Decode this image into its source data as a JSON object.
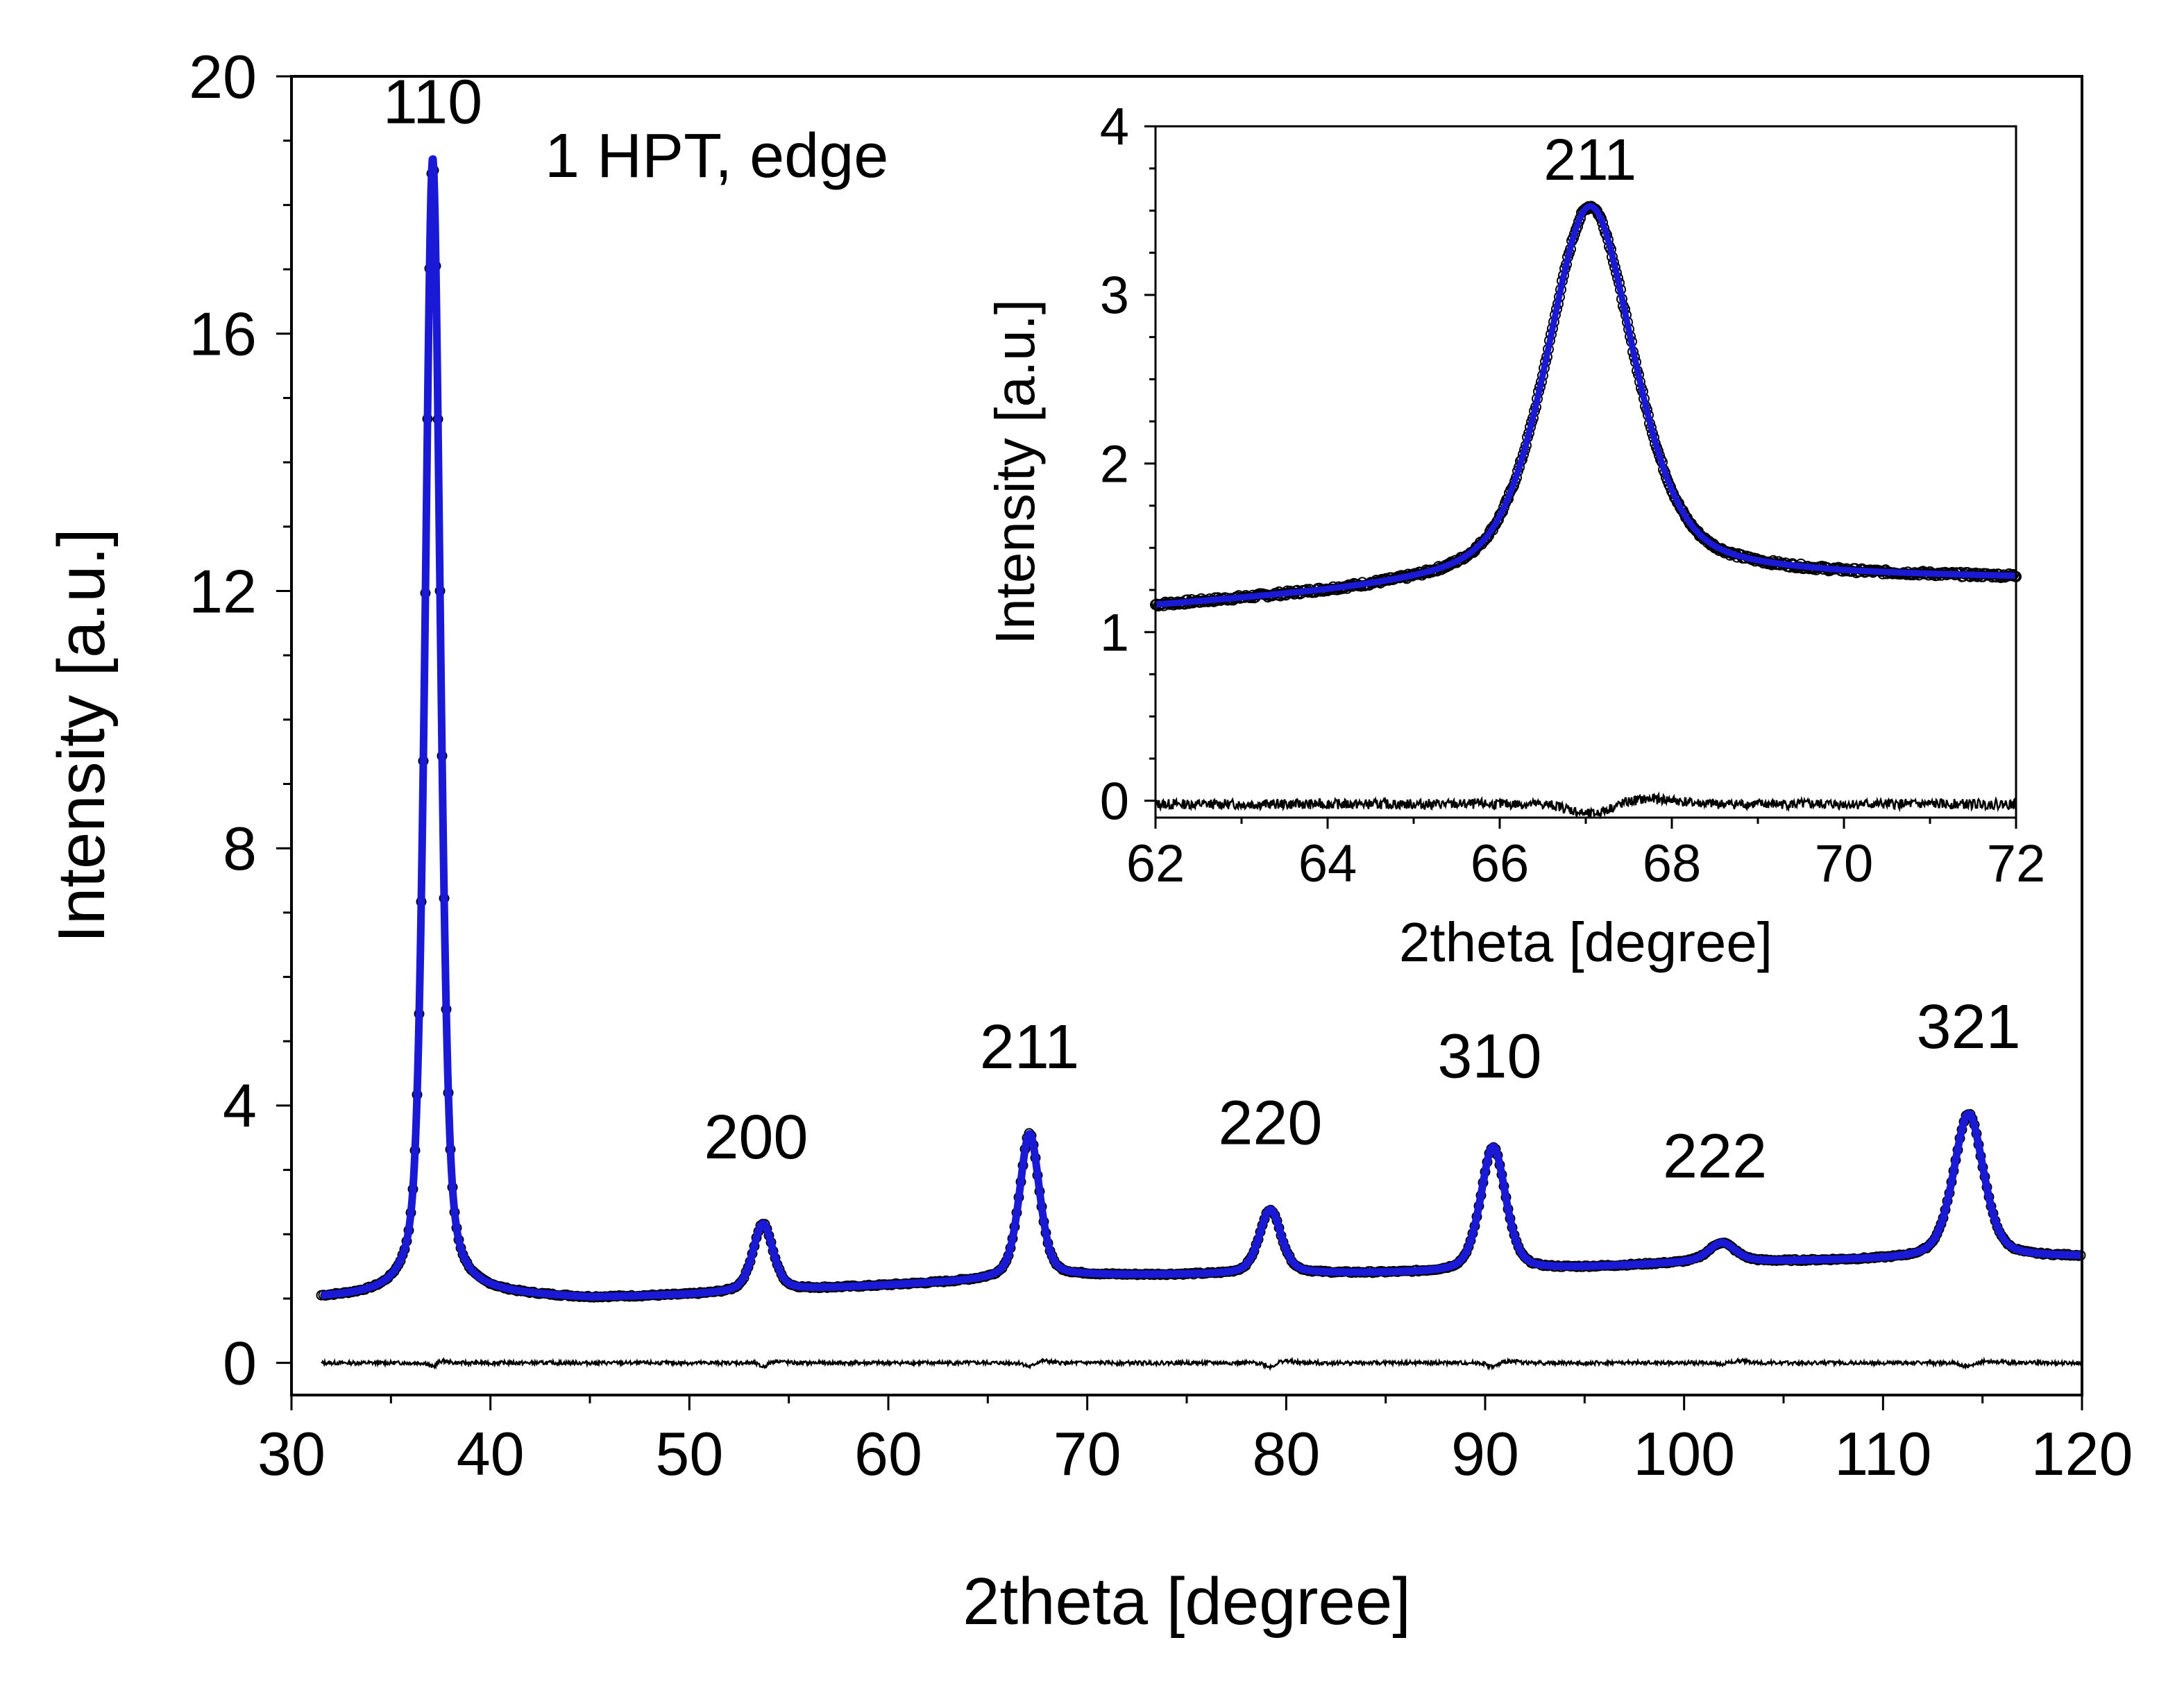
{
  "chart_data": [
    {
      "id": "main",
      "type": "line",
      "title": "1 HPT, edge",
      "xlabel": "2theta [degree]",
      "ylabel": "Intensity [a.u.]",
      "xlim": [
        30,
        120
      ],
      "ylim": [
        -0.5,
        20
      ],
      "xticks": [
        30,
        40,
        50,
        60,
        70,
        80,
        90,
        100,
        110,
        120
      ],
      "xtick_labels": [
        "30",
        "40",
        "50",
        "60",
        "70",
        "80",
        "90",
        "100",
        "110",
        "120"
      ],
      "yticks": [
        0,
        4,
        8,
        12,
        16,
        20
      ],
      "ytick_labels": [
        "0",
        "4",
        "8",
        "12",
        "16",
        "20"
      ],
      "x_range": [
        31.5,
        120
      ],
      "background": [
        [
          31.5,
          1.0
        ],
        [
          40,
          1.05
        ],
        [
          45,
          1.0
        ],
        [
          50,
          1.05
        ],
        [
          60,
          1.2
        ],
        [
          70,
          1.35
        ],
        [
          80,
          1.38
        ],
        [
          90,
          1.4
        ],
        [
          100,
          1.55
        ],
        [
          110,
          1.6
        ],
        [
          120,
          1.65
        ]
      ],
      "peaks": [
        {
          "label": "110",
          "x": 37.1,
          "height": 17.7,
          "width": 0.45
        },
        {
          "label": "200",
          "x": 53.7,
          "height": 1.05,
          "width": 0.6
        },
        {
          "label": "211",
          "x": 67.1,
          "height": 2.25,
          "width": 0.6
        },
        {
          "label": "220",
          "x": 79.2,
          "height": 1.0,
          "width": 0.65
        },
        {
          "label": "310",
          "x": 90.4,
          "height": 1.95,
          "width": 0.75
        },
        {
          "label": "222",
          "x": 101.9,
          "height": 0.3,
          "width": 0.8
        },
        {
          "label": "321",
          "x": 114.3,
          "height": 2.25,
          "width": 0.9
        }
      ],
      "difference_offset": 0.0,
      "series": [
        {
          "name": "observed",
          "marker": "open circle",
          "color": "#000000"
        },
        {
          "name": "calculated",
          "marker": "line",
          "color": "#1a1ad6"
        },
        {
          "name": "difference",
          "marker": "line",
          "color": "#000000"
        }
      ]
    },
    {
      "id": "inset",
      "type": "line",
      "xlabel": "2theta [degree]",
      "ylabel": "Intensity [a.u.]",
      "xlim": [
        62,
        72
      ],
      "ylim": [
        -0.1,
        4
      ],
      "xticks": [
        62,
        64,
        66,
        68,
        70,
        72
      ],
      "xtick_labels": [
        "62",
        "64",
        "66",
        "68",
        "70",
        "72"
      ],
      "yticks": [
        0,
        1,
        2,
        3,
        4
      ],
      "ytick_labels": [
        "0",
        "1",
        "2",
        "3",
        "4"
      ],
      "x_range": [
        62,
        72
      ],
      "background": [
        [
          62,
          1.15
        ],
        [
          64,
          1.22
        ],
        [
          66,
          1.3
        ],
        [
          68,
          1.35
        ],
        [
          70,
          1.33
        ],
        [
          72,
          1.32
        ]
      ],
      "peaks": [
        {
          "label": "211",
          "x": 67.05,
          "height": 2.2,
          "width": 0.6
        }
      ],
      "difference_offset": -0.02,
      "series": [
        {
          "name": "observed",
          "marker": "open circle",
          "color": "#000000"
        },
        {
          "name": "calculated",
          "marker": "line",
          "color": "#1a1ad6"
        },
        {
          "name": "difference",
          "marker": "line",
          "color": "#000000"
        }
      ]
    }
  ]
}
